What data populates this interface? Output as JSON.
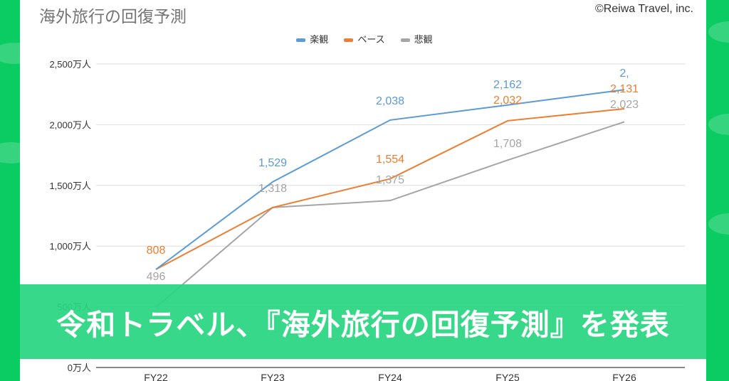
{
  "header": {
    "title": "海外旅行の回復予測",
    "copyright": "©Reiwa Travel, inc."
  },
  "banner": {
    "text": "令和トラベル、『海外旅行の回復予測』を発表"
  },
  "chart_data": {
    "type": "line",
    "title": "海外旅行の回復予測",
    "categories": [
      "FY22",
      "FY23",
      "FY24",
      "FY25",
      "FY26"
    ],
    "yticks": [
      "0万人",
      "500万人",
      "1,000万人",
      "1,500万人",
      "2,000万人",
      "2,500万人"
    ],
    "ylim": [
      0,
      2500
    ],
    "legend_position": "top-center",
    "grid": true,
    "series": [
      {
        "name": "楽観",
        "color": "#5b9bd5",
        "values": [
          808,
          1529,
          2038,
          2162,
          2288
        ],
        "labels": [
          "",
          "1,529",
          "2,038",
          "2,162",
          "2,"
        ]
      },
      {
        "name": "ベース",
        "color": "#ed7d31",
        "values": [
          808,
          1318,
          1554,
          2032,
          2131
        ],
        "labels": [
          "808",
          "",
          "1,554",
          "2,032",
          "2,131"
        ]
      },
      {
        "name": "悲観",
        "color": "#a5a5a5",
        "values": [
          496,
          1318,
          1375,
          1708,
          2023
        ],
        "labels": [
          "496",
          "1,318",
          "1,375",
          "1,708",
          "2,023"
        ]
      }
    ]
  }
}
